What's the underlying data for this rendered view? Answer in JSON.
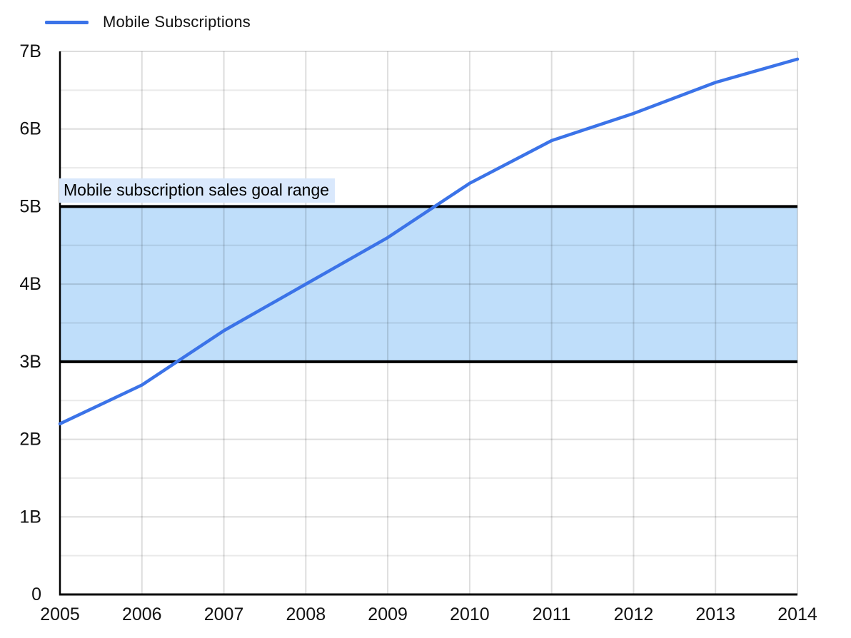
{
  "legend": {
    "label": "Mobile Subscriptions",
    "swatch_color": "#3B73E8"
  },
  "annotation": {
    "label": "Mobile subscription sales goal range",
    "bg_color": "#D9E8FC"
  },
  "colors": {
    "series_line": "#3B73E8",
    "band_fill": "#BFDEFA",
    "band_border": "#000000",
    "axis": "#000000",
    "grid_major": "rgba(0,0,0,0.135)",
    "grid_minor": "rgba(0,0,0,0.085)",
    "tick_text": "#111111"
  },
  "chart_data": {
    "type": "line",
    "title": "",
    "xlabel": "",
    "ylabel": "",
    "x": [
      2005,
      2006,
      2007,
      2008,
      2009,
      2010,
      2011,
      2012,
      2013,
      2014
    ],
    "x_tick_labels": [
      "2005",
      "2006",
      "2007",
      "2008",
      "2009",
      "2010",
      "2011",
      "2012",
      "2013",
      "2014"
    ],
    "series": [
      {
        "name": "Mobile Subscriptions",
        "color": "#3B73E8",
        "values": [
          2.2,
          2.7,
          3.4,
          4.0,
          4.6,
          5.3,
          5.85,
          6.2,
          6.6,
          6.9
        ]
      }
    ],
    "band": {
      "label": "Mobile subscription sales goal range",
      "from": 3,
      "to": 5
    },
    "ylim": [
      0,
      7
    ],
    "y_major_step": 1,
    "y_minor_step": 0.5,
    "y_tick_labels": [
      "0",
      "1B",
      "2B",
      "3B",
      "4B",
      "5B",
      "6B",
      "7B"
    ],
    "grid": true,
    "legend_position": "top-left"
  }
}
